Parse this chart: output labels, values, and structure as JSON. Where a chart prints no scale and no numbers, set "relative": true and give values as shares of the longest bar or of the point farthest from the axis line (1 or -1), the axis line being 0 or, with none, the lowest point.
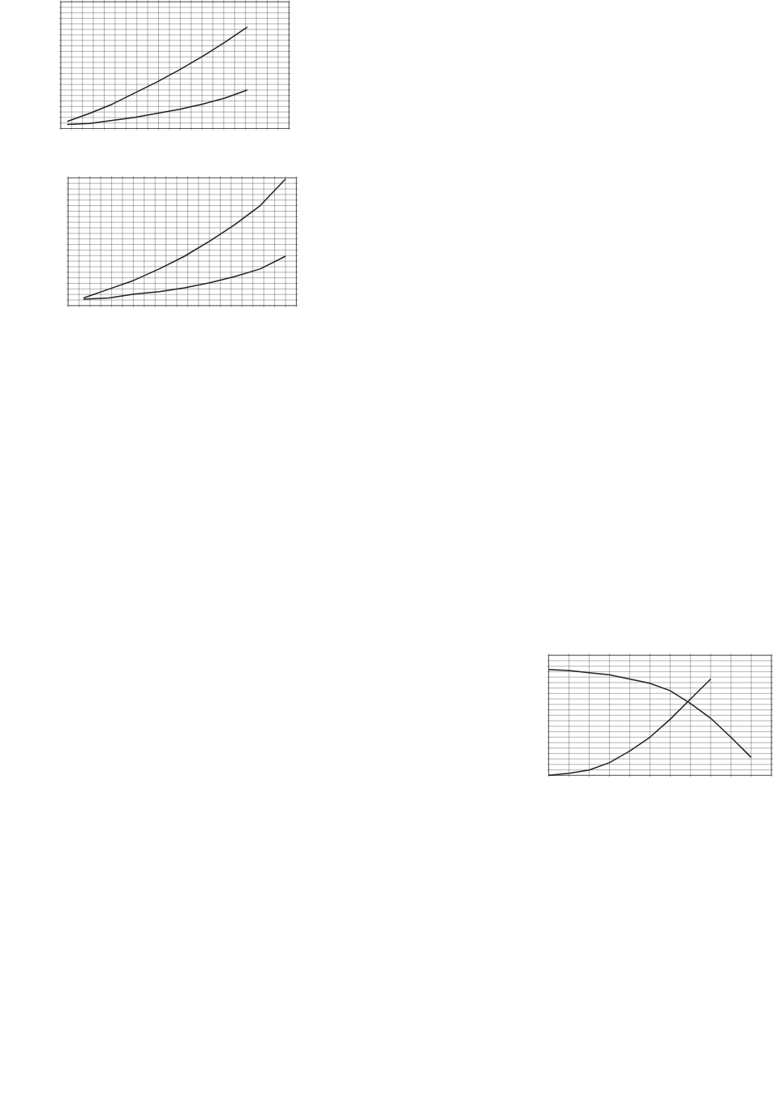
{
  "chart_data": [
    {
      "type": "line",
      "relative": true,
      "grid": true,
      "tick_labels": false,
      "categories": [
        null,
        null,
        null,
        null,
        null,
        null,
        null,
        null,
        null,
        null
      ],
      "series": [
        {
          "color": "#231f20",
          "values": [
            0.07,
            0.15,
            0.24,
            0.35,
            0.46,
            0.58,
            0.71,
            0.85,
            1,
            null
          ]
        },
        {
          "color": "#231f20",
          "values": [
            0.04,
            0.05,
            0.08,
            0.11,
            0.15,
            0.19,
            0.24,
            0.3,
            0.38,
            null
          ]
        }
      ]
    },
    {
      "type": "line",
      "relative": true,
      "grid": true,
      "tick_labels": false,
      "categories": [
        null,
        null,
        null,
        null,
        null,
        null,
        null,
        null,
        null
      ],
      "series": [
        {
          "color": "#231f20",
          "values": [
            0.06,
            0.13,
            0.2,
            0.29,
            0.39,
            0.51,
            0.64,
            0.79,
            1
          ]
        },
        {
          "color": "#231f20",
          "values": [
            0.05,
            0.06,
            0.09,
            0.11,
            0.14,
            0.18,
            0.23,
            0.29,
            0.39
          ]
        }
      ]
    },
    {
      "type": "line",
      "relative": true,
      "grid": true,
      "tick_labels": false,
      "categories": [
        null,
        null,
        null,
        null,
        null,
        null,
        null,
        null,
        null,
        null,
        null
      ],
      "series": [
        {
          "color": "#231f20",
          "values": [
            1,
            0.99,
            0.97,
            0.95,
            0.91,
            0.87,
            0.8,
            0.68,
            0.54,
            0.36,
            0.17
          ]
        },
        {
          "color": "#231f20",
          "values": [
            0,
            0.02,
            0.05,
            0.12,
            0.23,
            0.36,
            0.53,
            0.72,
            0.91,
            null,
            null
          ]
        }
      ]
    }
  ]
}
